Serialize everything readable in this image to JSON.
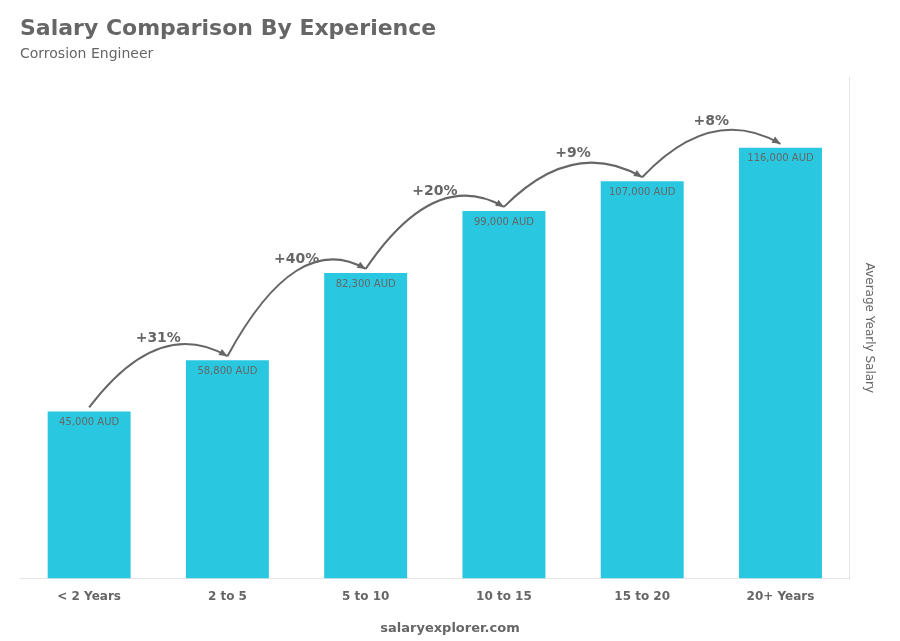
{
  "chart_data": {
    "type": "bar",
    "title": "Salary Comparison By Experience",
    "subtitle": "Corrosion Engineer",
    "categories": [
      "< 2 Years",
      "2 to 5",
      "5 to 10",
      "10 to 15",
      "15 to 20",
      "20+ Years"
    ],
    "values": [
      45000,
      58800,
      82300,
      99000,
      107000,
      116000
    ],
    "value_labels": [
      "45,000 AUD",
      "58,800 AUD",
      "82,300 AUD",
      "99,000 AUD",
      "107,000 AUD",
      "116,000 AUD"
    ],
    "data_labels": true,
    "color": "#29c8e0",
    "ylabel": "Average Yearly Salary",
    "ylim": [
      0,
      135000
    ],
    "tick_labels": "x",
    "grid": false,
    "pct_changes": [
      "+31%",
      "+40%",
      "+20%",
      "+9%",
      "+8%"
    ],
    "watermark": "salaryexplorer.com"
  }
}
